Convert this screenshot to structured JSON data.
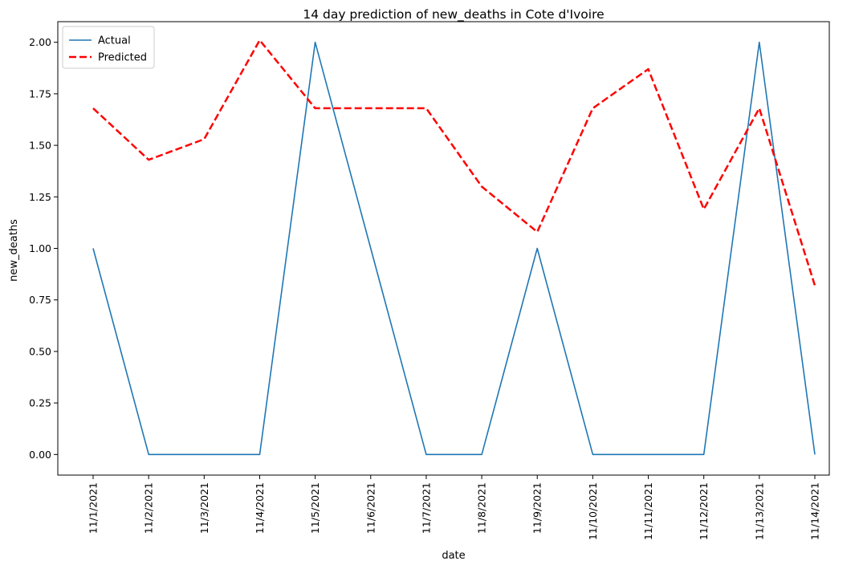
{
  "chart_data": {
    "type": "line",
    "title": "14 day prediction of new_deaths in Cote d'Ivoire",
    "xlabel": "date",
    "ylabel": "new_deaths",
    "categories": [
      "11/1/2021",
      "11/2/2021",
      "11/3/2021",
      "11/4/2021",
      "11/5/2021",
      "11/6/2021",
      "11/7/2021",
      "11/8/2021",
      "11/9/2021",
      "11/10/2021",
      "11/11/2021",
      "11/12/2021",
      "11/13/2021",
      "11/14/2021"
    ],
    "ylim": [
      -0.1,
      2.1
    ],
    "yticks": [
      "0.00",
      "0.25",
      "0.50",
      "0.75",
      "1.00",
      "1.25",
      "1.50",
      "1.75",
      "2.00"
    ],
    "legend_position": "top-left",
    "grid": false,
    "series": [
      {
        "name": "Actual",
        "color": "#1f77b4",
        "style": "solid",
        "values": [
          1,
          0,
          0,
          0,
          2,
          1,
          0,
          0,
          1,
          0,
          0,
          0,
          2,
          0
        ]
      },
      {
        "name": "Predicted",
        "color": "#ff0000",
        "style": "dashed",
        "values": [
          1.68,
          1.43,
          1.53,
          2.01,
          1.68,
          1.68,
          1.68,
          1.3,
          1.08,
          1.68,
          1.87,
          1.19,
          1.68,
          0.82
        ]
      }
    ]
  }
}
